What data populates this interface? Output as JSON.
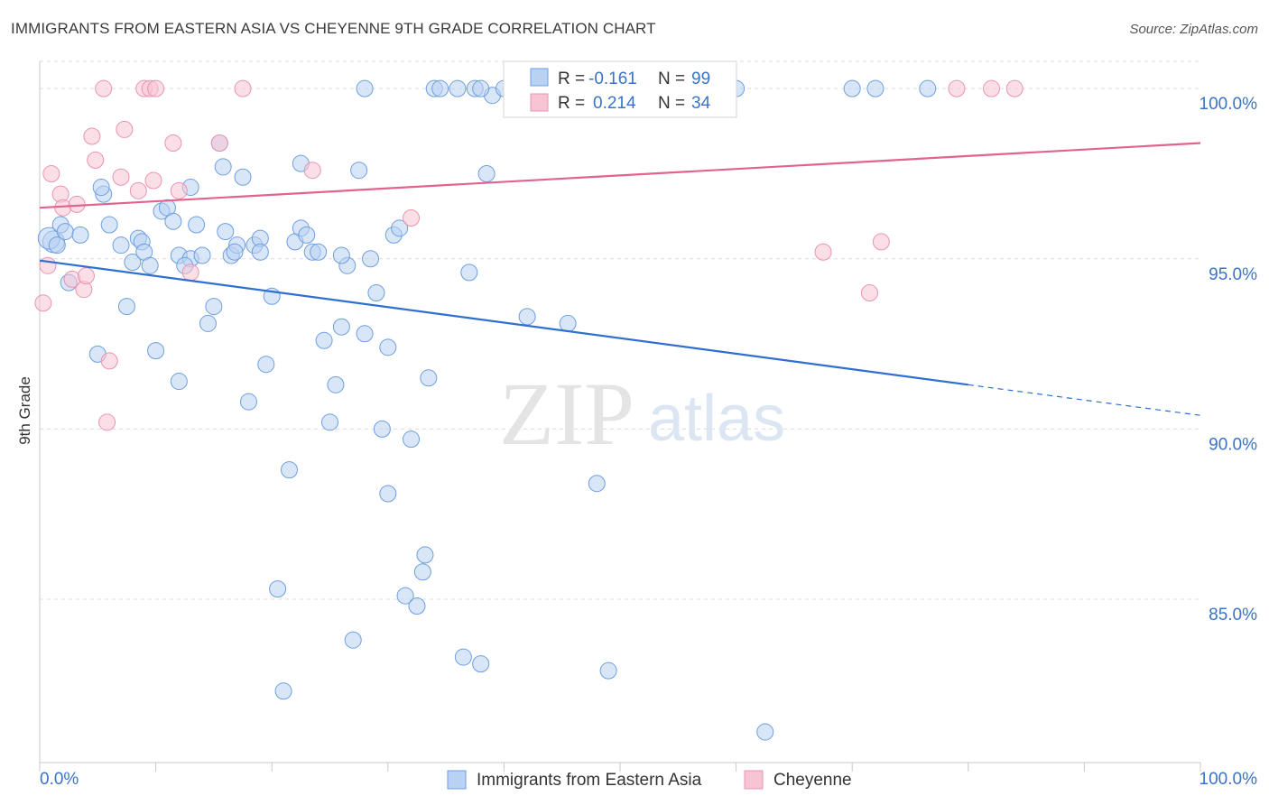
{
  "title": "IMMIGRANTS FROM EASTERN ASIA VS CHEYENNE 9TH GRADE CORRELATION CHART",
  "source": "Source: ZipAtlas.com",
  "watermark": {
    "zip": "ZIP",
    "atlas": "atlas"
  },
  "colors": {
    "blue_fill": "#b9d2f3",
    "blue_stroke": "#6d9fe0",
    "blue_line": "#2f6fd0",
    "pink_fill": "#f7c4d4",
    "pink_stroke": "#eb93b1",
    "pink_line": "#e0648f",
    "tick_label": "#3a73c8",
    "grid": "#dcdcdc"
  },
  "stats_box": {
    "rows": [
      {
        "r_label": "R =",
        "r_value": "-0.161",
        "n_label": "N =",
        "n_value": "99"
      },
      {
        "r_label": "R =",
        "r_value": "0.214",
        "n_label": "N =",
        "n_value": "34"
      }
    ]
  },
  "chart_data": {
    "type": "scatter",
    "title": "IMMIGRANTS FROM EASTERN ASIA VS CHEYENNE 9TH GRADE CORRELATION CHART",
    "xlabel": "",
    "ylabel": "9th Grade",
    "xlim": [
      0,
      100
    ],
    "ylim": [
      80.2,
      100.8
    ],
    "x_tick_labels": [
      "0.0%",
      "100.0%"
    ],
    "y_ticks": [
      85,
      90,
      95,
      100
    ],
    "y_tick_labels": [
      "85.0%",
      "90.0%",
      "95.0%",
      "100.0%"
    ],
    "grid": "horizontal dashed",
    "legend_position": "bottom-center",
    "series": [
      {
        "name": "Immigrants from Eastern Asia",
        "trend": {
          "x0": 0,
          "y0": 94.95,
          "x1": 80,
          "y1": 91.3,
          "dashed_to_x": 100,
          "dashed_to_y": 90.4
        },
        "points": [
          [
            1.2,
            95.5
          ],
          [
            0.8,
            95.6
          ],
          [
            1.8,
            96.0
          ],
          [
            2.2,
            95.8
          ],
          [
            3.5,
            95.7
          ],
          [
            2.5,
            94.3
          ],
          [
            1.5,
            95.4
          ],
          [
            5.5,
            96.9
          ],
          [
            5.3,
            97.1
          ],
          [
            6.0,
            96.0
          ],
          [
            7.0,
            95.4
          ],
          [
            8.0,
            94.9
          ],
          [
            7.5,
            93.6
          ],
          [
            8.5,
            95.6
          ],
          [
            8.8,
            95.5
          ],
          [
            9.0,
            95.2
          ],
          [
            9.5,
            94.8
          ],
          [
            10.5,
            96.4
          ],
          [
            10.0,
            92.3
          ],
          [
            11.0,
            96.5
          ],
          [
            11.5,
            96.1
          ],
          [
            12.0,
            95.1
          ],
          [
            13.0,
            95.0
          ],
          [
            12.5,
            94.8
          ],
          [
            13.5,
            96.0
          ],
          [
            13.0,
            97.1
          ],
          [
            14.0,
            95.1
          ],
          [
            14.5,
            93.1
          ],
          [
            15.0,
            93.6
          ],
          [
            15.5,
            98.4
          ],
          [
            15.8,
            97.7
          ],
          [
            16.0,
            95.8
          ],
          [
            16.5,
            95.1
          ],
          [
            17.0,
            95.4
          ],
          [
            16.8,
            95.2
          ],
          [
            17.5,
            97.4
          ],
          [
            18.0,
            90.8
          ],
          [
            18.5,
            95.4
          ],
          [
            19.0,
            95.6
          ],
          [
            19.5,
            91.9
          ],
          [
            19.0,
            95.2
          ],
          [
            20.0,
            93.9
          ],
          [
            20.5,
            85.3
          ],
          [
            21.0,
            82.3
          ],
          [
            21.5,
            88.8
          ],
          [
            22.0,
            95.5
          ],
          [
            22.5,
            95.9
          ],
          [
            23.0,
            95.7
          ],
          [
            22.5,
            97.8
          ],
          [
            23.5,
            95.2
          ],
          [
            24.0,
            95.2
          ],
          [
            24.5,
            92.6
          ],
          [
            25.0,
            90.2
          ],
          [
            25.5,
            91.3
          ],
          [
            26.0,
            93.0
          ],
          [
            26.5,
            94.8
          ],
          [
            27.0,
            83.8
          ],
          [
            26.0,
            95.1
          ],
          [
            27.5,
            97.6
          ],
          [
            28.0,
            92.8
          ],
          [
            28.5,
            95.0
          ],
          [
            29.0,
            94.0
          ],
          [
            29.5,
            90.0
          ],
          [
            30.0,
            92.4
          ],
          [
            30.5,
            95.7
          ],
          [
            31.0,
            95.9
          ],
          [
            31.5,
            85.1
          ],
          [
            32.0,
            89.7
          ],
          [
            32.5,
            84.8
          ],
          [
            33.0,
            85.8
          ],
          [
            33.2,
            86.3
          ],
          [
            33.5,
            91.5
          ],
          [
            34.0,
            100.0
          ],
          [
            34.5,
            100.0
          ],
          [
            36.5,
            83.3
          ],
          [
            37.0,
            94.6
          ],
          [
            37.5,
            100.0
          ],
          [
            38.0,
            83.1
          ],
          [
            38.5,
            97.5
          ],
          [
            39.0,
            99.8
          ],
          [
            40.0,
            100.0
          ],
          [
            42.0,
            93.3
          ],
          [
            43.5,
            100.0
          ],
          [
            45.5,
            93.1
          ],
          [
            48.0,
            88.4
          ],
          [
            49.0,
            82.9
          ],
          [
            52.0,
            100.0
          ],
          [
            58.0,
            100.0
          ],
          [
            60.0,
            100.0
          ],
          [
            62.5,
            81.1
          ],
          [
            70.0,
            100.0
          ],
          [
            72.0,
            100.0
          ],
          [
            76.5,
            100.0
          ],
          [
            28.0,
            100.0
          ],
          [
            36.0,
            100.0
          ],
          [
            38.0,
            100.0
          ],
          [
            30.0,
            88.1
          ],
          [
            12.0,
            91.4
          ],
          [
            5.0,
            92.2
          ]
        ]
      },
      {
        "name": "Cheyenne",
        "trend": {
          "x0": 0,
          "y0": 96.5,
          "x1": 100,
          "y1": 98.4
        },
        "points": [
          [
            0.3,
            93.7
          ],
          [
            0.7,
            94.8
          ],
          [
            1.0,
            97.5
          ],
          [
            1.8,
            96.9
          ],
          [
            2.0,
            96.5
          ],
          [
            2.8,
            94.4
          ],
          [
            3.2,
            96.6
          ],
          [
            3.8,
            94.1
          ],
          [
            4.0,
            94.5
          ],
          [
            4.5,
            98.6
          ],
          [
            4.8,
            97.9
          ],
          [
            5.5,
            100.0
          ],
          [
            5.8,
            90.2
          ],
          [
            6.0,
            92.0
          ],
          [
            7.0,
            97.4
          ],
          [
            7.3,
            98.8
          ],
          [
            8.5,
            97.0
          ],
          [
            9.0,
            100.0
          ],
          [
            9.5,
            100.0
          ],
          [
            9.8,
            97.3
          ],
          [
            10.0,
            100.0
          ],
          [
            11.5,
            98.4
          ],
          [
            12.0,
            97.0
          ],
          [
            13.0,
            94.6
          ],
          [
            15.5,
            98.4
          ],
          [
            17.5,
            100.0
          ],
          [
            23.5,
            97.6
          ],
          [
            32.0,
            96.2
          ],
          [
            67.5,
            95.2
          ],
          [
            71.5,
            94.0
          ],
          [
            72.5,
            95.5
          ],
          [
            79.0,
            100.0
          ],
          [
            82.0,
            100.0
          ],
          [
            84.0,
            100.0
          ]
        ]
      }
    ]
  },
  "legend": [
    {
      "label": "Immigrants from Eastern Asia"
    },
    {
      "label": "Cheyenne"
    }
  ]
}
